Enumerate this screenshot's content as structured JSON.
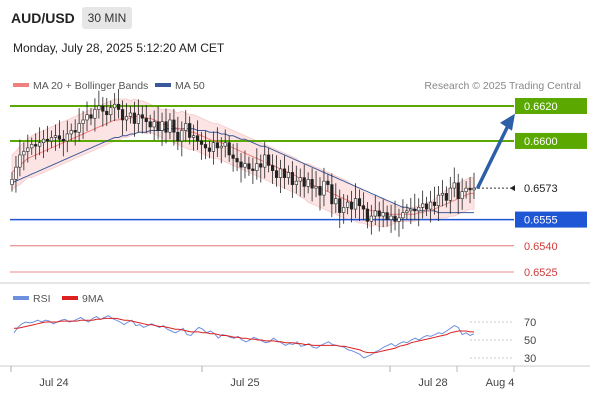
{
  "header": {
    "symbol": "AUD/USD",
    "timeframe": "30 MIN",
    "datetime": "Monday, July 28, 2025 5:12:20 AM CET",
    "copyright": "Research © 2025 Trading Central"
  },
  "legend": {
    "ma20": "MA 20 + Bollinger Bands",
    "ma50": "MA 50",
    "rsi": "RSI",
    "rsi_ma": "9MA"
  },
  "colors": {
    "up_candle": "#ffffff",
    "down_candle": "#222222",
    "ma20": "#ef8080",
    "bollinger_fill": "#fde4e4",
    "ma50": "#3b5998",
    "resistance": "#5ba800",
    "support": "#1e56d6",
    "support_weak": "#e06060",
    "last_price": "#333333",
    "rsi_line": "#6d8fe0",
    "rsi_ma": "#dd2020",
    "arrow": "#2d5ea8"
  },
  "chart_data": [
    {
      "type": "candlestick",
      "title": "",
      "ylim": [
        0.6515,
        0.663
      ],
      "x_ticks": [
        "Jul 24",
        "Jul 25",
        "Jul 28",
        "Aug 4"
      ],
      "levels": [
        {
          "value": 0.662,
          "label": "0.6620",
          "kind": "resistance"
        },
        {
          "value": 0.66,
          "label": "0.6600",
          "kind": "resistance"
        },
        {
          "value": 0.6573,
          "label": "0.6573",
          "kind": "last"
        },
        {
          "value": 0.6555,
          "label": "0.6555",
          "kind": "support"
        },
        {
          "value": 0.654,
          "label": "0.6540",
          "kind": "support_weak"
        },
        {
          "value": 0.6525,
          "label": "0.6525",
          "kind": "support_weak"
        }
      ],
      "target": {
        "from": 0.6573,
        "to": 0.6615
      },
      "close": [
        0.6578,
        0.6585,
        0.6592,
        0.6594,
        0.6596,
        0.6598,
        0.6597,
        0.6599,
        0.6601,
        0.66,
        0.6602,
        0.6603,
        0.6601,
        0.66,
        0.6604,
        0.6606,
        0.6605,
        0.661,
        0.6612,
        0.6615,
        0.6613,
        0.6618,
        0.662,
        0.6617,
        0.6615,
        0.6619,
        0.6621,
        0.6618,
        0.6612,
        0.6614,
        0.6616,
        0.661,
        0.6615,
        0.6613,
        0.6611,
        0.6608,
        0.6611,
        0.6606,
        0.6611,
        0.6605,
        0.6612,
        0.6605,
        0.66,
        0.6606,
        0.661,
        0.6602,
        0.6603,
        0.66,
        0.6598,
        0.6596,
        0.6594,
        0.6599,
        0.6596,
        0.6597,
        0.6599,
        0.6592,
        0.659,
        0.6588,
        0.6585,
        0.6587,
        0.6584,
        0.6583,
        0.6587,
        0.6585,
        0.6592,
        0.6586,
        0.6583,
        0.6579,
        0.6584,
        0.6579,
        0.6582,
        0.6575,
        0.6577,
        0.6579,
        0.6574,
        0.6578,
        0.6573,
        0.6574,
        0.6569,
        0.6577,
        0.6575,
        0.6564,
        0.6567,
        0.6559,
        0.6562,
        0.6565,
        0.6561,
        0.6567,
        0.6563,
        0.6561,
        0.6554,
        0.6557,
        0.656,
        0.6557,
        0.6559,
        0.6555,
        0.6557,
        0.6554,
        0.6556,
        0.6559,
        0.656,
        0.6561,
        0.656,
        0.6562,
        0.6564,
        0.6561,
        0.6565,
        0.6563,
        0.6569,
        0.657,
        0.6566,
        0.6573,
        0.6576,
        0.6567,
        0.6571,
        0.6573,
        0.6572,
        0.6573
      ],
      "ma20": [
        0.6582,
        0.6584,
        0.6586,
        0.6588,
        0.659,
        0.6591,
        0.6592,
        0.6593,
        0.6594,
        0.6595,
        0.6596,
        0.6597,
        0.6598,
        0.6599,
        0.66,
        0.6601,
        0.6602,
        0.6603,
        0.6604,
        0.6605,
        0.6606,
        0.6607,
        0.6608,
        0.6609,
        0.661,
        0.6611,
        0.6612,
        0.6612,
        0.6613,
        0.6613,
        0.6613,
        0.6614,
        0.6614,
        0.6614,
        0.6613,
        0.6613,
        0.6612,
        0.6611,
        0.661,
        0.6609,
        0.6609,
        0.6608,
        0.6607,
        0.6607,
        0.6606,
        0.6605,
        0.6605,
        0.6604,
        0.6603,
        0.6602,
        0.6601,
        0.66,
        0.66,
        0.6599,
        0.6598,
        0.6597,
        0.6596,
        0.6595,
        0.6594,
        0.6593,
        0.6592,
        0.6591,
        0.659,
        0.6589,
        0.6588,
        0.6587,
        0.6586,
        0.6585,
        0.6584,
        0.6583,
        0.6582,
        0.6581,
        0.658,
        0.6578,
        0.6577,
        0.6576,
        0.6575,
        0.6574,
        0.6573,
        0.6572,
        0.6571,
        0.657,
        0.6569,
        0.6568,
        0.6567,
        0.6566,
        0.6565,
        0.6564,
        0.6563,
        0.6562,
        0.6561,
        0.656,
        0.656,
        0.6559,
        0.6559,
        0.6558,
        0.6558,
        0.6558,
        0.6558,
        0.6558,
        0.6558,
        0.6558,
        0.6558,
        0.6559,
        0.6559,
        0.656,
        0.656,
        0.6561,
        0.6562,
        0.6563,
        0.6564,
        0.6565,
        0.6566,
        0.6567,
        0.6568,
        0.6569,
        0.657,
        0.657
      ],
      "bb_half": [
        0.001,
        0.001,
        0.0011,
        0.0011,
        0.0011,
        0.0012,
        0.0012,
        0.0012,
        0.0012,
        0.0012,
        0.0012,
        0.0012,
        0.0012,
        0.0012,
        0.0012,
        0.0012,
        0.0012,
        0.0012,
        0.0012,
        0.0012,
        0.0012,
        0.0012,
        0.0012,
        0.0012,
        0.0012,
        0.0012,
        0.0012,
        0.0012,
        0.0011,
        0.0011,
        0.001,
        0.001,
        0.0009,
        0.0009,
        0.0009,
        0.0008,
        0.0008,
        0.0008,
        0.0008,
        0.0009,
        0.0009,
        0.0009,
        0.0009,
        0.001,
        0.001,
        0.001,
        0.001,
        0.001,
        0.001,
        0.001,
        0.001,
        0.001,
        0.001,
        0.001,
        0.001,
        0.001,
        0.001,
        0.001,
        0.001,
        0.001,
        0.001,
        0.001,
        0.001,
        0.001,
        0.001,
        0.001,
        0.001,
        0.001,
        0.001,
        0.001,
        0.001,
        0.001,
        0.001,
        0.001,
        0.001,
        0.0011,
        0.0011,
        0.0011,
        0.0011,
        0.0011,
        0.0011,
        0.0011,
        0.0011,
        0.0011,
        0.0011,
        0.0011,
        0.001,
        0.001,
        0.001,
        0.0009,
        0.0009,
        0.0009,
        0.0008,
        0.0008,
        0.0008,
        0.0007,
        0.0006,
        0.0005,
        0.0004,
        0.0004,
        0.0004,
        0.0004,
        0.0004,
        0.0004,
        0.0004,
        0.0005,
        0.0005,
        0.0006,
        0.0006,
        0.0007,
        0.0008,
        0.0008,
        0.0009,
        0.0009,
        0.0009,
        0.0009,
        0.0009,
        0.0009
      ],
      "ma50": [
        0.6576,
        0.6577,
        0.6578,
        0.6579,
        0.658,
        0.6581,
        0.6582,
        0.6583,
        0.6584,
        0.6585,
        0.6586,
        0.6587,
        0.6588,
        0.6589,
        0.659,
        0.6591,
        0.6592,
        0.6593,
        0.6594,
        0.6595,
        0.6596,
        0.6597,
        0.6598,
        0.6599,
        0.66,
        0.6601,
        0.6602,
        0.6602,
        0.6603,
        0.6603,
        0.6604,
        0.6604,
        0.6605,
        0.6605,
        0.6605,
        0.6606,
        0.6606,
        0.6606,
        0.6606,
        0.6607,
        0.6607,
        0.6607,
        0.6607,
        0.6607,
        0.6607,
        0.6607,
        0.6607,
        0.6606,
        0.6606,
        0.6606,
        0.6605,
        0.6605,
        0.6605,
        0.6604,
        0.6604,
        0.6603,
        0.6603,
        0.6602,
        0.6601,
        0.6601,
        0.66,
        0.6599,
        0.6598,
        0.6597,
        0.6597,
        0.6596,
        0.6595,
        0.6594,
        0.6593,
        0.6592,
        0.6591,
        0.659,
        0.6589,
        0.6588,
        0.6587,
        0.6586,
        0.6585,
        0.6584,
        0.6583,
        0.6582,
        0.6581,
        0.658,
        0.6579,
        0.6578,
        0.6577,
        0.6576,
        0.6575,
        0.6574,
        0.6573,
        0.6572,
        0.6571,
        0.657,
        0.6569,
        0.6568,
        0.6567,
        0.6566,
        0.6565,
        0.6564,
        0.6563,
        0.6562,
        0.6562,
        0.6561,
        0.6561,
        0.656,
        0.656,
        0.656,
        0.656,
        0.656,
        0.6559,
        0.6559,
        0.6559,
        0.6559,
        0.6559,
        0.6559,
        0.6559,
        0.6559,
        0.6559,
        0.6559
      ]
    },
    {
      "type": "line",
      "title": "",
      "ylim": [
        20,
        85
      ],
      "y_ticks": [
        70,
        50,
        30
      ],
      "rsi": [
        58,
        64,
        68,
        70,
        69,
        70,
        72,
        70,
        72,
        71,
        68,
        70,
        72,
        73,
        70,
        71,
        73,
        75,
        72,
        70,
        74,
        76,
        73,
        75,
        77,
        74,
        72,
        70,
        67,
        70,
        72,
        66,
        67,
        64,
        66,
        68,
        66,
        64,
        66,
        62,
        60,
        58,
        60,
        63,
        56,
        55,
        60,
        64,
        62,
        58,
        60,
        57,
        52,
        56,
        55,
        53,
        52,
        54,
        50,
        48,
        50,
        53,
        51,
        49,
        47,
        48,
        52,
        49,
        47,
        44,
        46,
        45,
        48,
        43,
        44,
        46,
        42,
        41,
        44,
        46,
        48,
        45,
        44,
        43,
        42,
        39,
        38,
        36,
        34,
        30,
        32,
        34,
        37,
        39,
        42,
        44,
        46,
        43,
        46,
        48,
        47,
        50,
        52,
        50,
        53,
        55,
        54,
        56,
        58,
        57,
        60,
        63,
        66,
        64,
        56,
        58,
        55,
        57
      ],
      "ma9": [
        63,
        63,
        64,
        65,
        66,
        67,
        68,
        69,
        70,
        70,
        70,
        70,
        71,
        71,
        71,
        71,
        71,
        72,
        72,
        72,
        72,
        73,
        73,
        74,
        74,
        74,
        74,
        73,
        72,
        72,
        71,
        70,
        69,
        68,
        67,
        67,
        66,
        65,
        65,
        64,
        63,
        62,
        62,
        61,
        60,
        59,
        59,
        59,
        58,
        58,
        57,
        57,
        56,
        55,
        55,
        54,
        53,
        53,
        52,
        52,
        51,
        51,
        50,
        50,
        49,
        49,
        49,
        48,
        48,
        47,
        47,
        47,
        46,
        46,
        45,
        45,
        44,
        44,
        44,
        44,
        44,
        44,
        44,
        43,
        43,
        42,
        41,
        40,
        39,
        37,
        36,
        36,
        36,
        37,
        38,
        39,
        40,
        41,
        43,
        44,
        45,
        47,
        48,
        49,
        50,
        51,
        52,
        53,
        54,
        55,
        56,
        58,
        59,
        60,
        60,
        60,
        59,
        59
      ]
    }
  ]
}
